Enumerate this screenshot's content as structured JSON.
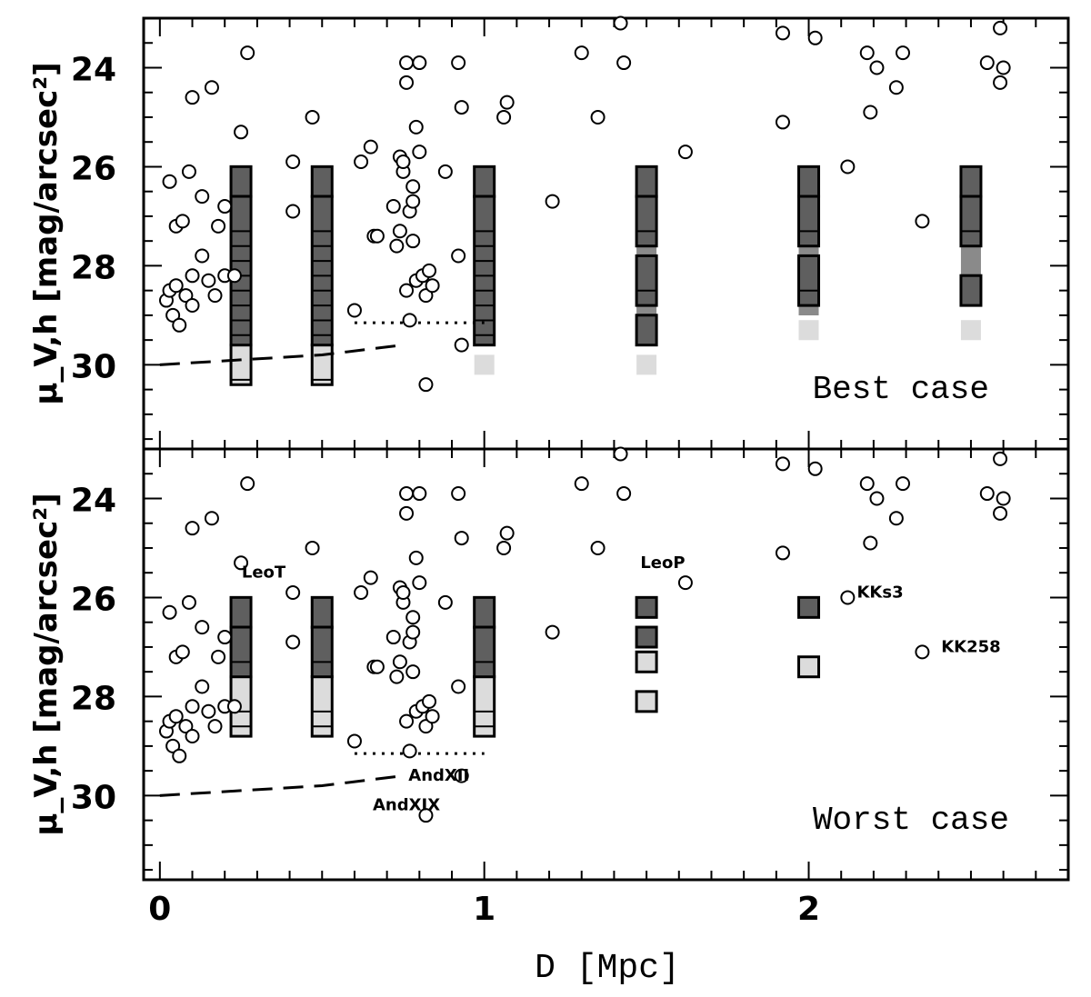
{
  "chart_data": [
    {
      "type": "scatter",
      "panel": "top",
      "title": "Best case",
      "xlabel": "D [Mpc]",
      "ylabel": "μ_V,h [mag/arcsec²]",
      "xlim": [
        -0.05,
        2.8
      ],
      "ylim": [
        31.7,
        23.0
      ],
      "x_ticks": [
        "0",
        "1",
        "2"
      ],
      "y_ticks": [
        "24",
        "26",
        "28",
        "30"
      ],
      "y_tick_values": [
        24,
        26,
        28,
        30
      ],
      "points": [
        [
          0.02,
          28.7
        ],
        [
          0.03,
          28.5
        ],
        [
          0.04,
          29.0
        ],
        [
          0.05,
          28.4
        ],
        [
          0.06,
          29.2
        ],
        [
          0.08,
          28.6
        ],
        [
          0.03,
          26.3
        ],
        [
          0.05,
          27.2
        ],
        [
          0.07,
          27.1
        ],
        [
          0.09,
          26.1
        ],
        [
          0.1,
          28.8
        ],
        [
          0.13,
          27.8
        ],
        [
          0.1,
          24.6
        ],
        [
          0.13,
          26.6
        ],
        [
          0.15,
          28.3
        ],
        [
          0.17,
          28.6
        ],
        [
          0.18,
          27.2
        ],
        [
          0.2,
          28.2
        ],
        [
          0.2,
          26.8
        ],
        [
          0.23,
          28.2
        ],
        [
          0.16,
          24.4
        ],
        [
          0.25,
          25.3
        ],
        [
          0.27,
          23.7
        ],
        [
          0.1,
          28.2
        ],
        [
          0.41,
          25.9
        ],
        [
          0.41,
          26.9
        ],
        [
          0.47,
          25.0
        ],
        [
          0.6,
          28.9
        ],
        [
          0.62,
          25.9
        ],
        [
          0.65,
          25.6
        ],
        [
          0.66,
          27.4
        ],
        [
          0.67,
          27.4
        ],
        [
          0.72,
          26.8
        ],
        [
          0.73,
          27.6
        ],
        [
          0.74,
          27.3
        ],
        [
          0.74,
          25.8
        ],
        [
          0.75,
          26.1
        ],
        [
          0.75,
          25.9
        ],
        [
          0.76,
          28.5
        ],
        [
          0.76,
          23.9
        ],
        [
          0.76,
          24.3
        ],
        [
          0.77,
          26.9
        ],
        [
          0.77,
          29.1
        ],
        [
          0.78,
          26.4
        ],
        [
          0.78,
          26.7
        ],
        [
          0.78,
          27.5
        ],
        [
          0.79,
          25.2
        ],
        [
          0.79,
          28.3
        ],
        [
          0.8,
          23.9
        ],
        [
          0.8,
          25.7
        ],
        [
          0.81,
          28.2
        ],
        [
          0.82,
          30.4
        ],
        [
          0.82,
          28.6
        ],
        [
          0.83,
          28.1
        ],
        [
          0.84,
          28.4
        ],
        [
          0.88,
          26.1
        ],
        [
          0.92,
          27.8
        ],
        [
          0.92,
          23.9
        ],
        [
          0.93,
          24.8
        ],
        [
          0.93,
          29.6
        ],
        [
          1.06,
          25.0
        ],
        [
          1.07,
          24.7
        ],
        [
          1.21,
          26.7
        ],
        [
          1.3,
          23.7
        ],
        [
          1.35,
          25.0
        ],
        [
          1.42,
          23.1
        ],
        [
          1.43,
          23.9
        ],
        [
          1.62,
          25.7
        ],
        [
          1.92,
          25.1
        ],
        [
          1.92,
          23.3
        ],
        [
          2.02,
          23.4
        ],
        [
          2.12,
          26.0
        ],
        [
          2.18,
          23.7
        ],
        [
          2.19,
          24.9
        ],
        [
          2.21,
          24.0
        ],
        [
          2.27,
          24.4
        ],
        [
          2.29,
          23.7
        ],
        [
          2.35,
          27.1
        ],
        [
          2.55,
          23.9
        ],
        [
          2.59,
          24.3
        ],
        [
          2.59,
          23.2
        ],
        [
          2.6,
          24.0
        ]
      ],
      "boxes": [
        {
          "x": 0.25,
          "dark": [
            [
              26.2,
              26.4
            ],
            [
              26.8,
              29.4
            ]
          ],
          "light": [
            [
              29.8,
              30.2
            ]
          ]
        },
        {
          "x": 0.5,
          "dark": [
            [
              26.2,
              26.4
            ],
            [
              26.8,
              29.4
            ]
          ],
          "light": [
            [
              29.8,
              30.2
            ]
          ]
        },
        {
          "x": 1.0,
          "dark": [
            [
              26.2,
              26.4
            ],
            [
              26.8,
              29.4
            ]
          ],
          "light": [
            [
              30.0,
              30.0
            ]
          ]
        },
        {
          "x": 1.5,
          "dark": [
            [
              26.2,
              26.4
            ],
            [
              26.8,
              27.4
            ],
            [
              28.0,
              28.6
            ],
            [
              29.2,
              29.4
            ]
          ],
          "mid": [
            [
              27.8,
              28.8
            ]
          ],
          "light": [
            [
              30.0,
              30.0
            ]
          ]
        },
        {
          "x": 2.0,
          "dark": [
            [
              26.2,
              26.4
            ],
            [
              26.8,
              27.4
            ],
            [
              28.0,
              28.6
            ]
          ],
          "mid": [
            [
              27.8,
              28.8
            ]
          ],
          "light": [
            [
              29.3,
              29.3
            ]
          ]
        },
        {
          "x": 2.5,
          "dark": [
            [
              26.2,
              26.4
            ],
            [
              26.8,
              27.4
            ],
            [
              28.4,
              28.6
            ]
          ],
          "mid": [
            [
              27.8,
              28.4
            ]
          ],
          "light": [
            [
              29.3,
              29.3
            ]
          ]
        }
      ],
      "dashed_line": [
        [
          0.0,
          30.0
        ],
        [
          0.25,
          29.9
        ],
        [
          0.5,
          29.8
        ],
        [
          0.75,
          29.6
        ]
      ],
      "dotted_line": [
        [
          0.6,
          29.15
        ],
        [
          1.0,
          29.15
        ]
      ],
      "labels": []
    },
    {
      "type": "scatter",
      "panel": "bottom",
      "title": "Worst case",
      "xlabel": "D [Mpc]",
      "ylabel": "μ_V,h [mag/arcsec²]",
      "xlim": [
        -0.05,
        2.8
      ],
      "ylim": [
        31.7,
        23.0
      ],
      "x_ticks": [
        "0",
        "1",
        "2"
      ],
      "y_ticks": [
        "24",
        "26",
        "28",
        "30"
      ],
      "y_tick_values": [
        24,
        26,
        28,
        30
      ],
      "points": "same-as-top",
      "boxes": [
        {
          "x": 0.25,
          "dark": [
            [
              26.2,
              26.4
            ],
            [
              26.8,
              27.4
            ]
          ],
          "light": [
            [
              27.8,
              28.6
            ]
          ]
        },
        {
          "x": 0.5,
          "dark": [
            [
              26.2,
              26.4
            ],
            [
              26.8,
              27.4
            ]
          ],
          "light": [
            [
              27.8,
              28.6
            ]
          ]
        },
        {
          "x": 1.0,
          "dark": [
            [
              26.2,
              26.4
            ],
            [
              26.8,
              27.4
            ]
          ],
          "light": [
            [
              27.8,
              28.6
            ]
          ]
        },
        {
          "x": 1.5,
          "dark": [
            [
              26.2,
              26.2
            ],
            [
              26.8,
              26.8
            ]
          ],
          "light": [
            [
              27.3,
              27.3
            ],
            [
              28.1,
              28.1
            ]
          ]
        },
        {
          "x": 2.0,
          "dark": [
            [
              26.2,
              26.2
            ]
          ],
          "light": [
            [
              27.4,
              27.4
            ]
          ]
        }
      ],
      "dashed_line": [
        [
          0.0,
          30.0
        ],
        [
          0.25,
          29.9
        ],
        [
          0.5,
          29.8
        ],
        [
          0.75,
          29.6
        ]
      ],
      "dotted_line": [
        [
          0.6,
          29.15
        ],
        [
          1.0,
          29.15
        ]
      ],
      "labels": [
        {
          "text": "LeoT",
          "x": 0.32,
          "y": 25.6
        },
        {
          "text": "LeoP",
          "x": 1.55,
          "y": 25.4
        },
        {
          "text": "KKs3",
          "x": 2.22,
          "y": 26.0
        },
        {
          "text": "KK258",
          "x": 2.5,
          "y": 27.1
        },
        {
          "text": "AndXII",
          "x": 0.86,
          "y": 29.7
        },
        {
          "text": "AndXIX",
          "x": 0.76,
          "y": 30.3
        }
      ]
    }
  ]
}
